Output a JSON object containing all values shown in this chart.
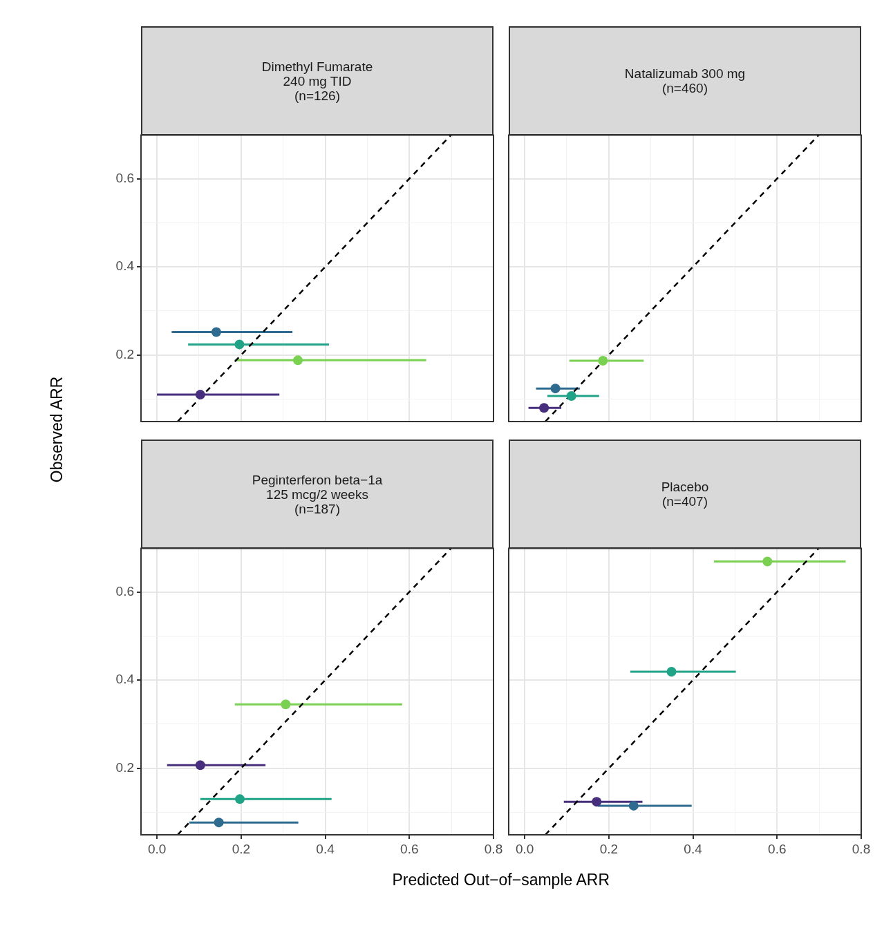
{
  "chart_data": [
    {
      "type": "scatter",
      "title": "Dimethyl Fumarate\n240 mg TID\n(n=126)",
      "ylabel": "Observed ARR",
      "xlim": [
        -0.038,
        0.8
      ],
      "ylim": [
        0.049,
        0.699
      ],
      "xticks": [
        0,
        {
          "value": 0.1,
          "label": null
        },
        0.2,
        {
          "value": 0.3,
          "label": null
        },
        0.4,
        {
          "value": 0.5,
          "label": null
        },
        0.6,
        {
          "value": 0.7,
          "label": null
        },
        0.8
      ],
      "yticks": [
        {
          "value": 0.1,
          "label": null
        },
        {
          "value": 0.2,
          "label": "0.2"
        },
        {
          "value": 0.3,
          "label": null
        },
        {
          "value": 0.4,
          "label": "0.4"
        },
        {
          "value": 0.5,
          "label": null
        },
        {
          "value": 0.6,
          "label": "0.6"
        }
      ],
      "grid": true,
      "tick_labels": "y",
      "marker": "circle",
      "series": [
        {
          "type": "line",
          "marker": "none",
          "color": "#000000",
          "line_style": "dashed",
          "x": [
            0.049,
            0.699
          ],
          "values": [
            0.049,
            0.699
          ]
        },
        {
          "color": "#2e6b8e",
          "x": [
            0.141
          ],
          "values": [
            0.252
          ],
          "xerrors": [
            [
              0.035,
              0.322
            ]
          ]
        },
        {
          "color": "#20a387",
          "x": [
            0.196
          ],
          "values": [
            0.224
          ],
          "xerrors": [
            [
              0.074,
              0.409
            ]
          ]
        },
        {
          "color": "#7ad151",
          "x": [
            0.335
          ],
          "values": [
            0.188
          ],
          "xerrors": [
            [
              0.185,
              0.64
            ]
          ]
        },
        {
          "color": "#472f7d",
          "x": [
            0.103
          ],
          "values": [
            0.11
          ],
          "xerrors": [
            [
              0.0,
              0.291
            ]
          ]
        }
      ]
    },
    {
      "type": "scatter",
      "title": "Natalizumab 300 mg\n(n=460)",
      "xlim": [
        -0.038,
        0.8
      ],
      "ylim": [
        0.049,
        0.699
      ],
      "xticks": [
        0,
        {
          "value": 0.1,
          "label": null
        },
        0.2,
        {
          "value": 0.3,
          "label": null
        },
        0.4,
        {
          "value": 0.5,
          "label": null
        },
        0.6,
        {
          "value": 0.7,
          "label": null
        },
        0.8
      ],
      "yticks": [
        {
          "value": 0.1,
          "label": null
        },
        0.2,
        {
          "value": 0.3,
          "label": null
        },
        0.4,
        {
          "value": 0.5,
          "label": null
        },
        0.6
      ],
      "grid": true,
      "tick_labels": false,
      "marker": "circle",
      "series": [
        {
          "type": "line",
          "marker": "none",
          "color": "#000000",
          "line_style": "dashed",
          "x": [
            0.049,
            0.699
          ],
          "values": [
            0.049,
            0.699
          ]
        },
        {
          "color": "#7ad151",
          "x": [
            0.186
          ],
          "values": [
            0.187
          ],
          "xerrors": [
            [
              0.106,
              0.283
            ]
          ]
        },
        {
          "color": "#2e6b8e",
          "x": [
            0.073
          ],
          "values": [
            0.124
          ],
          "xerrors": [
            [
              0.027,
              0.131
            ]
          ]
        },
        {
          "color": "#20a387",
          "x": [
            0.111
          ],
          "values": [
            0.107
          ],
          "xerrors": [
            [
              0.054,
              0.177
            ]
          ]
        },
        {
          "color": "#472f7d",
          "x": [
            0.046
          ],
          "values": [
            0.08
          ],
          "xerrors": [
            [
              0.009,
              0.087
            ]
          ]
        }
      ]
    },
    {
      "type": "scatter",
      "title": "Peginterferon beta−1a\n125 mcg/2 weeks\n(n=187)",
      "xlabel": "Predicted Out−of−sample ARR",
      "xlim": [
        -0.038,
        0.8
      ],
      "ylim": [
        0.049,
        0.699
      ],
      "xticks": [
        {
          "value": 0,
          "label": "0.0"
        },
        {
          "value": 0.1,
          "label": null
        },
        {
          "value": 0.2,
          "label": "0.2"
        },
        {
          "value": 0.3,
          "label": null
        },
        {
          "value": 0.4,
          "label": "0.4"
        },
        {
          "value": 0.5,
          "label": null
        },
        {
          "value": 0.6,
          "label": "0.6"
        },
        {
          "value": 0.7,
          "label": null
        },
        {
          "value": 0.8,
          "label": "0.8"
        }
      ],
      "yticks": [
        {
          "value": 0.1,
          "label": null
        },
        {
          "value": 0.2,
          "label": "0.2"
        },
        {
          "value": 0.3,
          "label": null
        },
        {
          "value": 0.4,
          "label": "0.4"
        },
        {
          "value": 0.5,
          "label": null
        },
        {
          "value": 0.6,
          "label": "0.6"
        }
      ],
      "grid": true,
      "marker": "circle",
      "series": [
        {
          "type": "line",
          "marker": "none",
          "color": "#000000",
          "line_style": "dashed",
          "x": [
            0.049,
            0.699
          ],
          "values": [
            0.049,
            0.699
          ]
        },
        {
          "color": "#7ad151",
          "x": [
            0.306
          ],
          "values": [
            0.345
          ],
          "xerrors": [
            [
              0.185,
              0.583
            ]
          ]
        },
        {
          "color": "#472f7d",
          "x": [
            0.103
          ],
          "values": [
            0.207
          ],
          "xerrors": [
            [
              0.024,
              0.258
            ]
          ]
        },
        {
          "color": "#20a387",
          "x": [
            0.197
          ],
          "values": [
            0.13
          ],
          "xerrors": [
            [
              0.103,
              0.415
            ]
          ]
        },
        {
          "color": "#2e6b8e",
          "x": [
            0.147
          ],
          "values": [
            0.077
          ],
          "xerrors": [
            [
              0.077,
              0.336
            ]
          ]
        }
      ]
    },
    {
      "type": "scatter",
      "title": "Placebo\n(n=407)",
      "xlim": [
        -0.038,
        0.8
      ],
      "ylim": [
        0.049,
        0.699
      ],
      "xticks": [
        {
          "value": 0,
          "label": "0.0"
        },
        {
          "value": 0.1,
          "label": null
        },
        {
          "value": 0.2,
          "label": "0.2"
        },
        {
          "value": 0.3,
          "label": null
        },
        {
          "value": 0.4,
          "label": "0.4"
        },
        {
          "value": 0.5,
          "label": null
        },
        {
          "value": 0.6,
          "label": "0.6"
        },
        {
          "value": 0.7,
          "label": null
        },
        {
          "value": 0.8,
          "label": "0.8"
        }
      ],
      "yticks": [
        {
          "value": 0.1,
          "label": null
        },
        0.2,
        {
          "value": 0.3,
          "label": null
        },
        0.4,
        {
          "value": 0.5,
          "label": null
        },
        0.6
      ],
      "grid": true,
      "tick_labels": "x",
      "marker": "circle",
      "series": [
        {
          "type": "line",
          "marker": "none",
          "color": "#000000",
          "line_style": "dashed",
          "x": [
            0.049,
            0.699
          ],
          "values": [
            0.049,
            0.699
          ]
        },
        {
          "color": "#7ad151",
          "x": [
            0.577
          ],
          "values": [
            0.669
          ],
          "xerrors": [
            [
              0.45,
              0.763
            ]
          ]
        },
        {
          "color": "#20a387",
          "x": [
            0.349
          ],
          "values": [
            0.419
          ],
          "xerrors": [
            [
              0.251,
              0.502
            ]
          ]
        },
        {
          "color": "#472f7d",
          "x": [
            0.171
          ],
          "values": [
            0.124
          ],
          "xerrors": [
            [
              0.093,
              0.28
            ]
          ]
        },
        {
          "color": "#2e6b8e",
          "x": [
            0.259
          ],
          "values": [
            0.115
          ],
          "xerrors": [
            [
              0.174,
              0.397
            ]
          ]
        }
      ]
    }
  ]
}
